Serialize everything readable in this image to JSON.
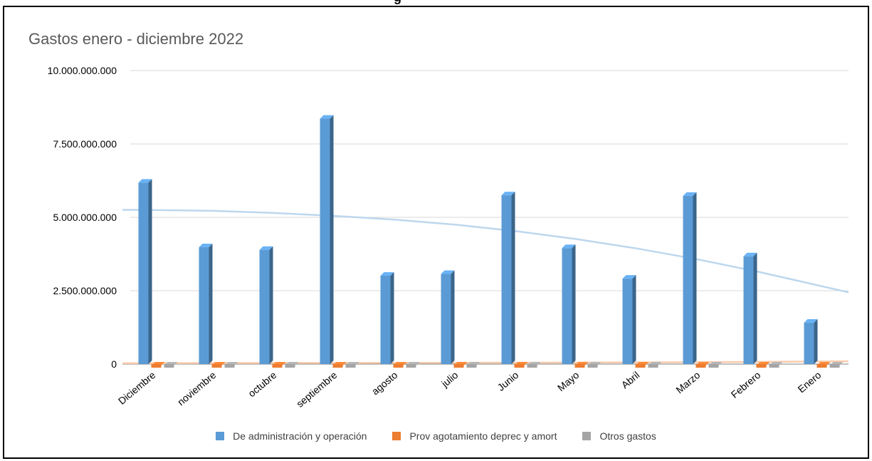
{
  "top_title": "g",
  "chart_data": {
    "type": "bar",
    "title": "Gastos  enero - diciembre 2022",
    "categories": [
      "Diciembre",
      "noviembre",
      "octubre",
      "septiembre",
      "agosto",
      "julio",
      "Junio",
      "Mayo",
      "Abril",
      "Marzo",
      "Febrero",
      "Enero"
    ],
    "ylim": [
      0,
      10000000000
    ],
    "yticks": [
      0,
      2500000000,
      5000000000,
      7500000000,
      10000000000
    ],
    "ytick_labels": [
      "0",
      "2.500.000.000",
      "5.000.000.000",
      "7.500.000.000",
      "10.000.000.000"
    ],
    "grid": true,
    "legend_position": "bottom",
    "series": [
      {
        "name": "De administración y operación",
        "color": "#5B9BD5",
        "values": [
          6180000000,
          3980000000,
          3890000000,
          8360000000,
          3010000000,
          3070000000,
          5750000000,
          3950000000,
          2910000000,
          5730000000,
          3670000000,
          1410000000
        ]
      },
      {
        "name": "Prov agotamiento deprec y amort",
        "color": "#ED7D31",
        "values": [
          40000000,
          40000000,
          40000000,
          40000000,
          40000000,
          40000000,
          45000000,
          50000000,
          60000000,
          60000000,
          80000000,
          90000000
        ]
      },
      {
        "name": "Otros gastos",
        "color": "#A5A5A5",
        "values": [
          0,
          0,
          0,
          0,
          0,
          0,
          0,
          0,
          0,
          0,
          0,
          0
        ]
      }
    ],
    "trendlines": [
      {
        "series": "De administración y operación",
        "color": "#BDD7EE",
        "values": [
          5250000000,
          5220000000,
          5150000000,
          5050000000,
          4920000000,
          4750000000,
          4530000000,
          4260000000,
          3940000000,
          3570000000,
          3150000000,
          2680000000
        ]
      },
      {
        "series": "Prov agotamiento deprec y amort",
        "color": "#F8CBAD",
        "values": [
          30000000,
          35000000,
          38000000,
          40000000,
          42000000,
          45000000,
          48000000,
          52000000,
          58000000,
          65000000,
          75000000,
          90000000
        ]
      }
    ]
  }
}
